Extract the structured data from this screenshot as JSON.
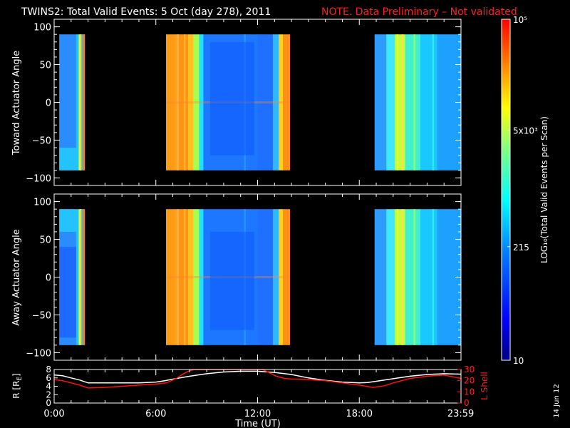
{
  "title": {
    "main": "TWINS2: Total Valid Events:  5 Oct (day 278), 2011",
    "note": "NOTE. Data Preliminary – Not validated",
    "main_color": "#ffffff",
    "note_color": "#ff2020"
  },
  "stamp": "14 Jun 12",
  "chart_data": [
    {
      "id": "toward-panel",
      "type": "heatmap",
      "ylabel": "Toward Actuator Angle",
      "ylim": [
        -110,
        110
      ],
      "yticks": [
        100,
        50,
        0,
        -50,
        -100
      ],
      "ytick_labels": [
        "100",
        "50",
        "0",
        "−50",
        "−100"
      ],
      "xlim_hours": [
        0,
        24
      ],
      "data_angle_range": [
        -90,
        90
      ],
      "coverage_hours": [
        [
          0.3,
          1.8
        ],
        [
          6.6,
          13.9
        ],
        [
          18.9,
          24
        ]
      ],
      "dominant_colors": [
        "#2b8cff",
        "#ff9a14",
        "#19b8ff",
        "#78ffb0"
      ]
    },
    {
      "id": "away-panel",
      "type": "heatmap",
      "ylabel": "Away Actuator Angle",
      "ylim": [
        -110,
        110
      ],
      "yticks": [
        100,
        50,
        0,
        -50,
        -100
      ],
      "ytick_labels": [
        "100",
        "50",
        "0",
        "−50",
        "−100"
      ],
      "xlim_hours": [
        0,
        24
      ],
      "data_angle_range": [
        -90,
        90
      ],
      "coverage_hours": [
        [
          0.3,
          1.8
        ],
        [
          6.6,
          13.9
        ],
        [
          18.9,
          24
        ]
      ],
      "dominant_colors": [
        "#2b8cff",
        "#ff9a14",
        "#19b8ff",
        "#78ffb0"
      ]
    },
    {
      "id": "orbit-panel",
      "type": "line",
      "ylabel_left": "R [R",
      "ylabel_left_sub": "E",
      "ylabel_left_end": "]",
      "ylabel_right": "L Shell",
      "ylim_left": [
        0,
        8
      ],
      "yticks_left": [
        "8",
        "6",
        "4",
        "2",
        "0"
      ],
      "ylim_right": [
        0,
        30
      ],
      "yticks_right": [
        "30",
        "20",
        "10",
        "0"
      ],
      "xlabel": "Time (UT)",
      "xticks_hours": [
        0,
        6,
        12,
        18,
        23.983
      ],
      "xtick_labels": [
        "0:00",
        "6:00",
        "12:00",
        "18:00",
        "23:59"
      ],
      "series": [
        {
          "name": "R [RE]",
          "color": "#ffffff",
          "x": [
            0,
            0.5,
            1,
            1.5,
            2,
            3,
            4,
            5,
            6,
            6.5,
            7,
            8,
            9,
            10,
            11,
            12,
            13,
            14,
            15,
            16,
            17,
            18,
            18.5,
            19,
            20,
            21,
            22,
            23,
            24
          ],
          "y": [
            6.7,
            6.5,
            6.0,
            5.5,
            4.8,
            4.8,
            4.8,
            4.8,
            5.0,
            5.3,
            5.7,
            6.4,
            7.0,
            7.4,
            7.6,
            7.6,
            7.3,
            6.8,
            6.0,
            5.4,
            5.0,
            4.8,
            4.9,
            5.2,
            5.8,
            6.4,
            6.8,
            7.0,
            6.9
          ]
        },
        {
          "name": "L Shell",
          "color": "#ff1010",
          "x": [
            0,
            0.5,
            1,
            1.5,
            2,
            3,
            4,
            5,
            6,
            6.6,
            7.2,
            7.6,
            8.0,
            8.3,
            12.3,
            12.7,
            13.1,
            13.6,
            14,
            15,
            16,
            17,
            18,
            18.8,
            19.5,
            20,
            21,
            22,
            23,
            24
          ],
          "y": [
            21,
            20,
            18,
            16,
            13.5,
            14,
            15,
            16,
            17,
            18,
            22,
            26,
            29,
            30,
            30,
            27,
            24,
            22,
            21.5,
            21,
            20,
            18,
            16,
            14,
            15.5,
            18,
            22,
            24,
            25,
            22
          ]
        }
      ]
    },
    {
      "id": "colorbar",
      "type": "heatmap",
      "label": "LOG₁₀(Total Valid Events per Scan)",
      "scale": "log",
      "range": [
        10,
        100000
      ],
      "tick_labels": [
        {
          "value": 100000,
          "label": "10⁵"
        },
        {
          "value": 5000,
          "label": "5x10³"
        },
        {
          "value": 215,
          "label": "215"
        },
        {
          "value": 10,
          "label": "10"
        }
      ],
      "colors": [
        "#000080",
        "#0000ff",
        "#0080ff",
        "#00ffff",
        "#80ff80",
        "#ffff00",
        "#ff8000",
        "#ff0000"
      ]
    }
  ]
}
